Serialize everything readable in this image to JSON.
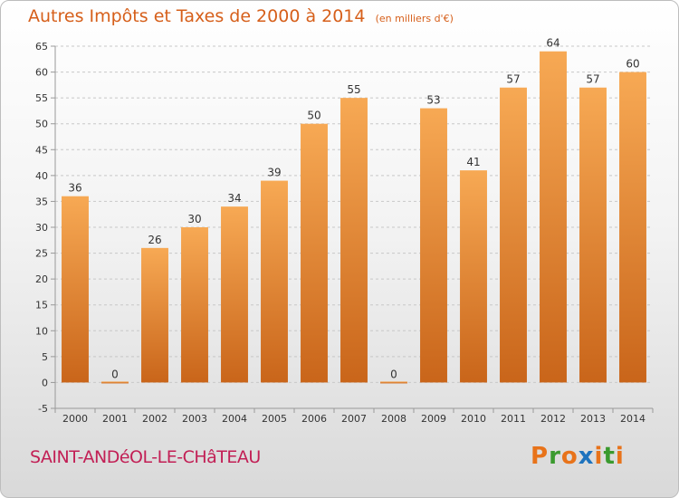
{
  "header": {
    "title": "Autres Impôts et Taxes de 2000 à 2014",
    "unit": "(en milliers d'€)"
  },
  "footer": {
    "place": "SAINT-ANDéOL-LE-CHâTEAU",
    "logo": "Proxiti",
    "logo_colors": [
      "#e8731a",
      "#3a9a2e",
      "#e8731a",
      "#1e73be",
      "#e8731a",
      "#3a9a2e",
      "#e8731a"
    ]
  },
  "colors": {
    "bar_light": "#f7a954",
    "bar_dark": "#c9651a",
    "grid": "#c8c8c8",
    "axis_text": "#333333",
    "title": "#d65f1a",
    "place": "#c21f55"
  },
  "chart_data": {
    "type": "bar",
    "title": "Autres Impôts et Taxes de 2000 à 2014",
    "categories": [
      "2000",
      "2001",
      "2002",
      "2003",
      "2004",
      "2005",
      "2006",
      "2007",
      "2008",
      "2009",
      "2010",
      "2011",
      "2012",
      "2013",
      "2014"
    ],
    "values": [
      36,
      0,
      26,
      30,
      34,
      39,
      50,
      55,
      0,
      53,
      41,
      57,
      64,
      57,
      60
    ],
    "ylim": [
      -5,
      65
    ],
    "yticks": [
      -5,
      0,
      5,
      10,
      15,
      20,
      25,
      30,
      35,
      40,
      45,
      50,
      55,
      60,
      65
    ],
    "grid": "horizontal dashed",
    "data_labels": true
  }
}
